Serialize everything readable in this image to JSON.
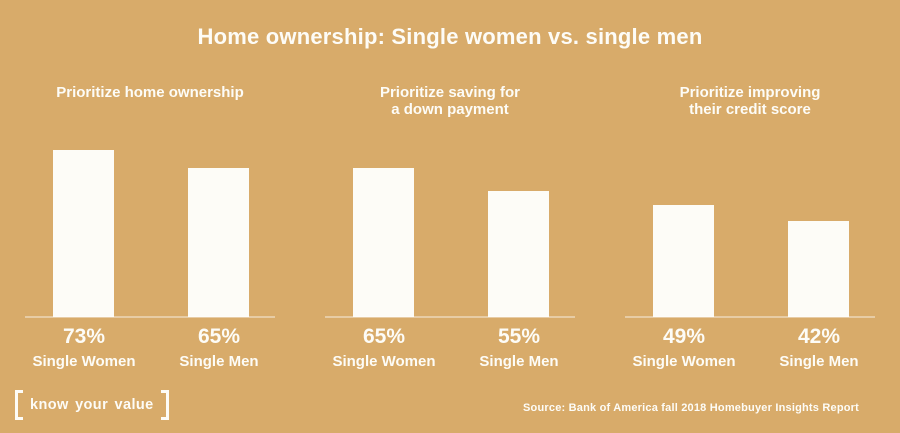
{
  "title": "Home ownership: Single women vs. single men",
  "colors": {
    "background": "#d8ab6a",
    "bar": "#fdfcf7",
    "text": "#fdfcf7"
  },
  "chart_data": {
    "type": "bar",
    "title": "Home ownership: Single women vs. single men",
    "unit": "%",
    "grid": false,
    "legend": "none",
    "ylim": [
      0,
      73
    ],
    "groups": [
      {
        "label": "Prioritize home ownership",
        "categories": [
          "Single Women",
          "Single Men"
        ],
        "values": [
          73,
          65
        ],
        "value_labels": [
          "73%",
          "65%"
        ]
      },
      {
        "label": "Prioritize saving for\na down payment",
        "categories": [
          "Single Women",
          "Single Men"
        ],
        "values": [
          65,
          55
        ],
        "value_labels": [
          "65%",
          "55%"
        ]
      },
      {
        "label": "Prioritize improving\ntheir credit score",
        "categories": [
          "Single Women",
          "Single Men"
        ],
        "values": [
          49,
          42
        ],
        "value_labels": [
          "49%",
          "42%"
        ]
      }
    ]
  },
  "footer": {
    "logo_text": "know your value",
    "source": "Source: Bank of America fall 2018 Homebuyer Insights Report"
  }
}
